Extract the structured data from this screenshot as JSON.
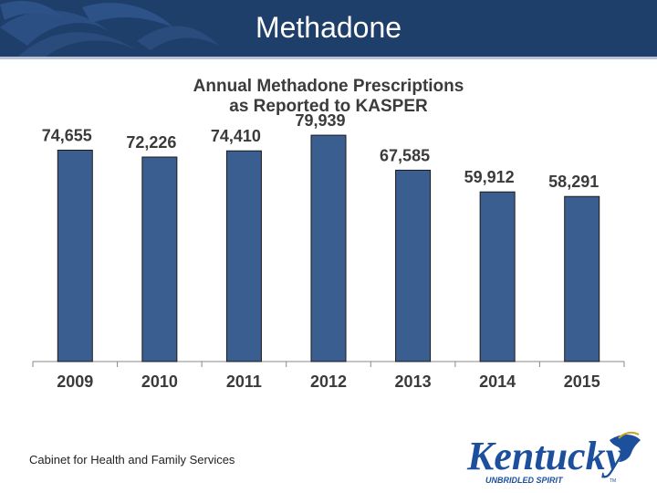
{
  "header": {
    "title": "Methadone"
  },
  "chart_data": {
    "type": "bar",
    "title_line1": "Annual Methadone Prescriptions",
    "title_line2": "as Reported to KASPER",
    "categories": [
      "2009",
      "2010",
      "2011",
      "2012",
      "2013",
      "2014",
      "2015"
    ],
    "values": [
      74655,
      72226,
      74410,
      79939,
      67585,
      59912,
      58291
    ],
    "value_labels": [
      "74,655",
      "72,226",
      "74,410",
      "79,939",
      "67,585",
      "59,912",
      "58,291"
    ],
    "ylim": [
      0,
      89000
    ],
    "bar_color": "#3b5e91",
    "xlabel": "",
    "ylabel": "",
    "grid": false
  },
  "footer": {
    "text": "Cabinet for Health and Family Services"
  },
  "logo": {
    "name": "Kentucky",
    "tagline": "UNBRIDLED SPIRIT",
    "mark": "TM"
  },
  "colors": {
    "header_bg": "#1f3f6b",
    "logo_blue": "#1c4f9c"
  }
}
